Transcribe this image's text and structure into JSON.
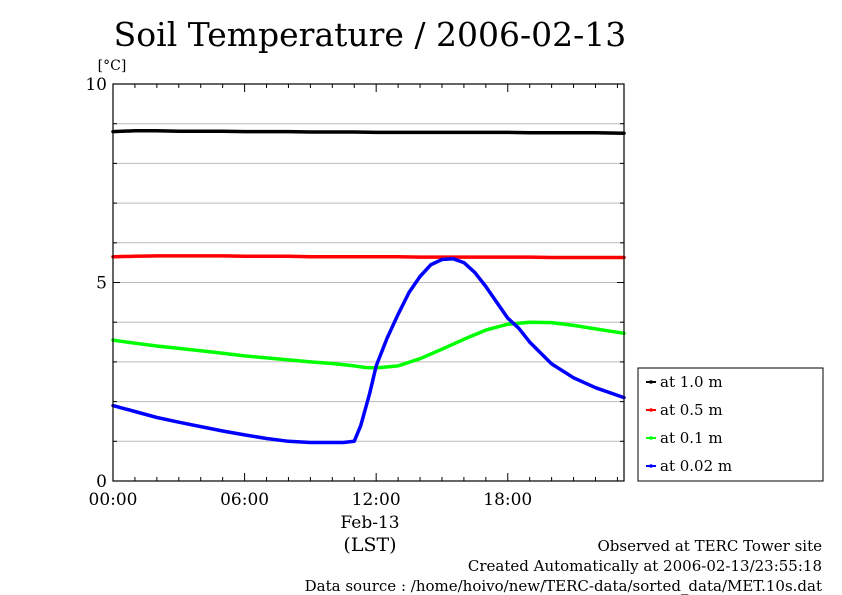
{
  "title": "Soil Temperature / 2006-02-13",
  "footer": {
    "line1": "Observed at TERC Tower site",
    "line2": "Created Automatically at 2006-02-13/23:55:18",
    "line3": "Data source : /home/hoivo/new/TERC-data/sorted_data/MET.10s.dat"
  },
  "chart_data": {
    "type": "line",
    "title": "Soil Temperature / 2006-02-13",
    "xlabel": "Feb-13",
    "xlabel_sub": "(LST)",
    "ylabel": "[°C]",
    "x_ticks": [
      "00:00",
      "06:00",
      "12:00",
      "18:00"
    ],
    "y_ticks": [
      "0",
      "5",
      "10"
    ],
    "xlim": [
      0,
      23.3
    ],
    "ylim": [
      0,
      10
    ],
    "grid": true,
    "legend_position": "right",
    "series": [
      {
        "name": "at 1.0 m",
        "color": "#000000",
        "x": [
          0,
          1,
          2,
          3,
          4,
          5,
          6,
          7,
          8,
          9,
          10,
          11,
          12,
          13,
          14,
          15,
          16,
          17,
          18,
          19,
          20,
          21,
          22,
          23.3
        ],
        "y": [
          8.8,
          8.82,
          8.82,
          8.81,
          8.81,
          8.81,
          8.8,
          8.8,
          8.8,
          8.79,
          8.79,
          8.79,
          8.78,
          8.78,
          8.78,
          8.78,
          8.78,
          8.78,
          8.78,
          8.77,
          8.77,
          8.77,
          8.77,
          8.76
        ]
      },
      {
        "name": "at 0.5 m",
        "color": "#ff0000",
        "x": [
          0,
          1,
          2,
          3,
          4,
          5,
          6,
          7,
          8,
          9,
          10,
          11,
          12,
          13,
          14,
          15,
          16,
          17,
          18,
          19,
          20,
          21,
          22,
          23.3
        ],
        "y": [
          5.65,
          5.66,
          5.67,
          5.67,
          5.67,
          5.67,
          5.66,
          5.66,
          5.66,
          5.65,
          5.65,
          5.65,
          5.65,
          5.65,
          5.64,
          5.64,
          5.64,
          5.64,
          5.64,
          5.64,
          5.63,
          5.63,
          5.63,
          5.63
        ]
      },
      {
        "name": "at 0.1 m",
        "color": "#00ff00",
        "x": [
          0,
          1,
          2,
          3,
          4,
          5,
          6,
          7,
          8,
          9,
          10,
          11,
          11.5,
          12,
          13,
          14,
          15,
          16,
          17,
          18,
          19,
          20,
          21,
          22,
          23.3
        ],
        "y": [
          3.55,
          3.47,
          3.4,
          3.34,
          3.28,
          3.22,
          3.15,
          3.1,
          3.05,
          3.0,
          2.96,
          2.9,
          2.86,
          2.85,
          2.9,
          3.08,
          3.32,
          3.57,
          3.8,
          3.95,
          4.0,
          3.99,
          3.92,
          3.83,
          3.72
        ]
      },
      {
        "name": "at 0.02 m",
        "color": "#0000ff",
        "x": [
          0,
          1,
          2,
          3,
          4,
          5,
          6,
          7,
          8,
          9,
          10,
          10.5,
          11,
          11.3,
          11.7,
          12,
          12.5,
          13,
          13.5,
          14,
          14.5,
          15,
          15.5,
          16,
          16.5,
          17,
          17.5,
          18,
          18.5,
          19,
          20,
          21,
          22,
          23.3
        ],
        "y": [
          1.9,
          1.75,
          1.6,
          1.48,
          1.37,
          1.26,
          1.16,
          1.07,
          1.0,
          0.97,
          0.97,
          0.97,
          1.0,
          1.4,
          2.2,
          2.9,
          3.6,
          4.2,
          4.75,
          5.15,
          5.45,
          5.58,
          5.6,
          5.5,
          5.25,
          4.9,
          4.5,
          4.1,
          3.85,
          3.5,
          2.95,
          2.6,
          2.35,
          2.1
        ]
      }
    ]
  }
}
